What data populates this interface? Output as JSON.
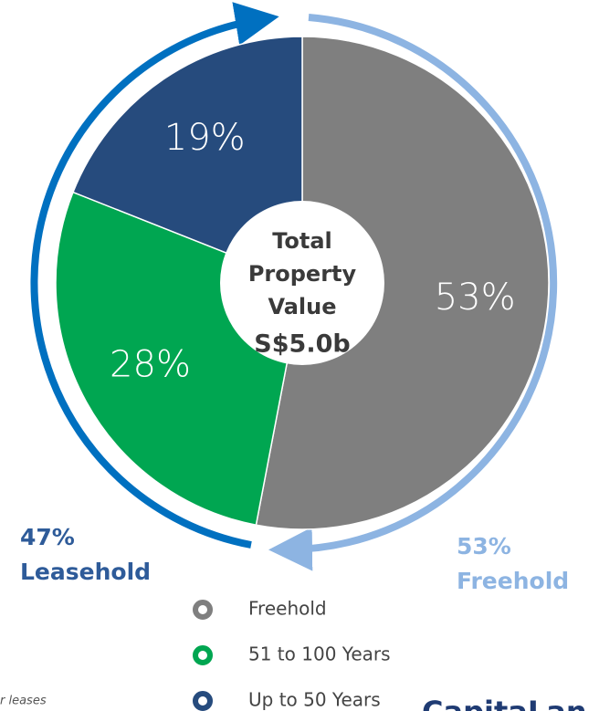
{
  "chart_data": {
    "type": "pie",
    "categories": [
      "Freehold",
      "51 to 100 Years",
      "Up to 50 Years"
    ],
    "values": [
      53,
      28,
      19
    ],
    "value_labels": [
      "53%",
      "28%",
      "19%"
    ],
    "colors": [
      "#7f7f7f",
      "#00a651",
      "#264b7d"
    ],
    "donut": true,
    "center_label_lines": [
      "Total",
      "Property",
      "Value"
    ],
    "center_value": "S$5.0b",
    "annotations": [
      {
        "lines": [
          "47%",
          "Leasehold"
        ],
        "color": "#2e5b99"
      },
      {
        "lines": [
          "53%",
          "Freehold"
        ],
        "color": "#8db4e2"
      }
    ],
    "footnote": "r leases",
    "logo_text": "CapitaLan",
    "legend": true
  }
}
